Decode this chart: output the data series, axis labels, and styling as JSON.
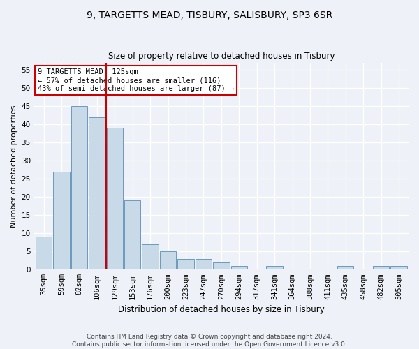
{
  "title": "9, TARGETTS MEAD, TISBURY, SALISBURY, SP3 6SR",
  "subtitle": "Size of property relative to detached houses in Tisbury",
  "xlabel": "Distribution of detached houses by size in Tisbury",
  "ylabel": "Number of detached properties",
  "categories": [
    "35sqm",
    "59sqm",
    "82sqm",
    "106sqm",
    "129sqm",
    "153sqm",
    "176sqm",
    "200sqm",
    "223sqm",
    "247sqm",
    "270sqm",
    "294sqm",
    "317sqm",
    "341sqm",
    "364sqm",
    "388sqm",
    "411sqm",
    "435sqm",
    "458sqm",
    "482sqm",
    "505sqm"
  ],
  "values": [
    9,
    27,
    45,
    42,
    39,
    19,
    7,
    5,
    3,
    3,
    2,
    1,
    0,
    1,
    0,
    0,
    0,
    1,
    0,
    1,
    1
  ],
  "bar_color": "#c8d9e8",
  "bar_edge_color": "#5b8db8",
  "vline_x_data": 3.5,
  "vline_color": "#cc0000",
  "ylim": [
    0,
    57
  ],
  "yticks": [
    0,
    5,
    10,
    15,
    20,
    25,
    30,
    35,
    40,
    45,
    50,
    55
  ],
  "annotation_text": "9 TARGETTS MEAD: 125sqm\n← 57% of detached houses are smaller (116)\n43% of semi-detached houses are larger (87) →",
  "annotation_box_color": "#ffffff",
  "annotation_box_edge": "#cc0000",
  "footer1": "Contains HM Land Registry data © Crown copyright and database right 2024.",
  "footer2": "Contains public sector information licensed under the Open Government Licence v3.0.",
  "background_color": "#eef2f8",
  "title_fontsize": 10,
  "subtitle_fontsize": 8.5,
  "xlabel_fontsize": 8.5,
  "ylabel_fontsize": 8,
  "tick_fontsize": 7.5,
  "annot_fontsize": 7.5,
  "footer_fontsize": 6.5
}
